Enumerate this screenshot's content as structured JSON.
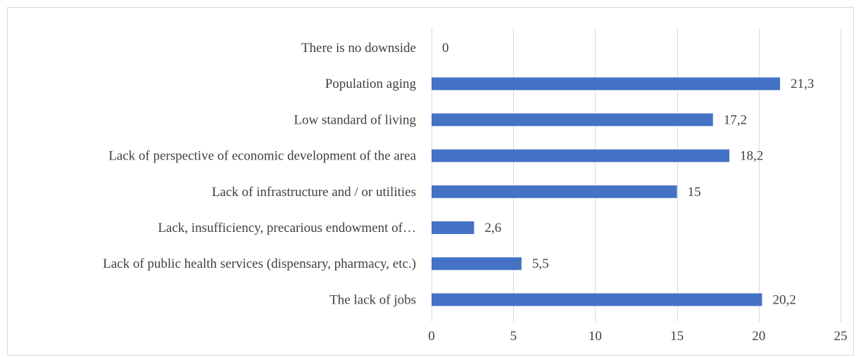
{
  "chart_data": {
    "type": "bar",
    "orientation": "horizontal",
    "title": "",
    "xlabel": "",
    "ylabel": "",
    "categories": [
      "There is no downside",
      "Population aging",
      "Low standard of living",
      "Lack of perspective of economic development of the area",
      "Lack of infrastructure and / or utilities",
      "Lack, insufficiency, precarious endowment of…",
      "Lack of public health services (dispensary, pharmacy, etc.)",
      "The lack of jobs"
    ],
    "values": [
      0,
      21.3,
      17.2,
      18.2,
      15,
      2.6,
      5.5,
      20.2
    ],
    "data_labels": [
      "0",
      "21,3",
      "17,2",
      "18,2",
      "15",
      "2,6",
      "5,5",
      "20,2"
    ],
    "xlim": [
      0,
      25
    ],
    "xticks": [
      0,
      5,
      10,
      15,
      20,
      25
    ],
    "xtick_labels": [
      "0",
      "5",
      "10",
      "15",
      "20",
      "25"
    ],
    "grid": "vertical",
    "legend": "none",
    "bar_color": "#4472c4"
  }
}
